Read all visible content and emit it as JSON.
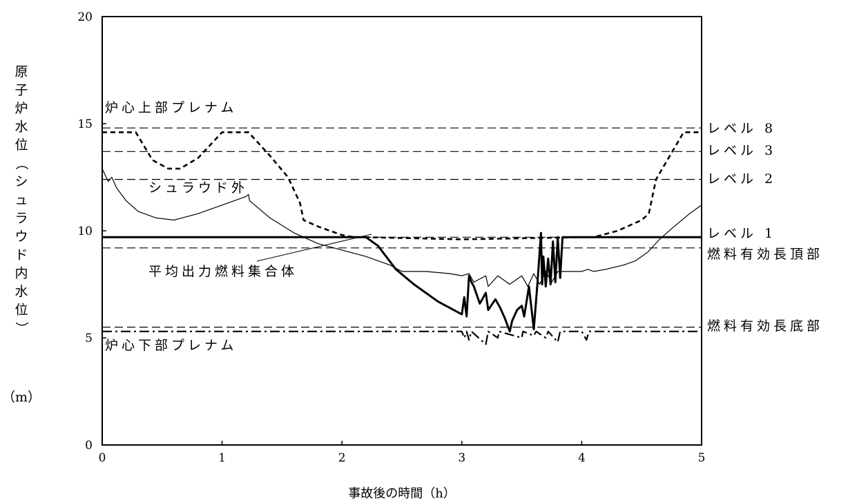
{
  "chart_data": {
    "type": "line",
    "xlabel": "事故後の時間（h）",
    "ylabel": "原子炉水位（シュラウド内水位）",
    "ylabel_unit": "（m）",
    "xlim": [
      0,
      5
    ],
    "ylim": [
      0,
      20
    ],
    "x_ticks": [
      "0",
      "1",
      "2",
      "3",
      "4",
      "5"
    ],
    "y_ticks": [
      "0",
      "5",
      "10",
      "15",
      "20"
    ],
    "grid": false,
    "annotations": {
      "upper_plenum": "炉心上部プレナム",
      "lower_plenum": "炉心下部プレナム",
      "outside_shroud": "シュラウド外",
      "avg_fuel": "平均出力燃料集合体",
      "level8": "レベル 8",
      "level3": "レベル 3",
      "level2": "レベル 2",
      "level1": "レベル 1",
      "taf": "燃料有効長頂部",
      "baf": "燃料有効長底部"
    },
    "reference_lines": [
      {
        "label_key": "level8",
        "y": 14.8
      },
      {
        "label_key": "level3",
        "y": 13.7
      },
      {
        "label_key": "level2",
        "y": 12.4
      },
      {
        "label_key": "level1",
        "y": 9.7
      },
      {
        "label_key": "taf",
        "y": 9.2
      },
      {
        "label_key": "baf",
        "y": 5.5
      }
    ],
    "series": [
      {
        "style": "dashed-bold",
        "x": [
          0,
          0.28,
          0.42,
          0.55,
          0.65,
          0.8,
          1.0,
          1.22,
          1.4,
          1.55,
          1.65,
          1.68,
          1.8,
          2.0,
          2.1,
          2.2,
          3.0,
          4.0,
          4.1,
          4.3,
          4.5,
          4.56,
          4.62,
          4.85,
          5.0
        ],
        "y": [
          14.6,
          14.6,
          13.3,
          12.9,
          12.9,
          13.4,
          14.6,
          14.6,
          13.5,
          12.5,
          11.3,
          10.5,
          10.2,
          9.8,
          9.7,
          9.7,
          9.6,
          9.7,
          9.7,
          10.0,
          10.5,
          10.8,
          12.4,
          14.6,
          14.6
        ]
      },
      {
        "style": "thin",
        "x": [
          0,
          0.05,
          0.08,
          0.12,
          0.2,
          0.3,
          0.45,
          0.6,
          0.8,
          1.0,
          1.2,
          1.22,
          1.23,
          1.4,
          1.6,
          1.8,
          2.0,
          2.2,
          2.4,
          2.5,
          2.7,
          2.9,
          3.0,
          3.06,
          3.1,
          3.2,
          3.22,
          3.3,
          3.4,
          3.5,
          3.55,
          3.6,
          3.65,
          3.7,
          3.75,
          3.8,
          3.9,
          4.0,
          4.05,
          4.1,
          4.2,
          4.35,
          4.45,
          4.55,
          4.65,
          4.75,
          4.9,
          5.0
        ],
        "y": [
          12.9,
          12.3,
          12.5,
          12.0,
          11.4,
          10.9,
          10.6,
          10.5,
          10.8,
          11.2,
          11.6,
          11.7,
          11.4,
          10.6,
          9.9,
          9.4,
          9.1,
          8.8,
          8.4,
          8.1,
          8.1,
          8.0,
          7.9,
          8.0,
          7.6,
          7.9,
          7.4,
          7.9,
          7.5,
          7.9,
          7.4,
          8.0,
          7.5,
          8.1,
          7.6,
          8.1,
          8.1,
          8.1,
          8.2,
          8.1,
          8.2,
          8.4,
          8.6,
          9.0,
          9.6,
          10.1,
          10.8,
          11.2
        ]
      },
      {
        "style": "bold",
        "x": [
          0,
          2.2,
          2.3,
          2.45,
          2.6,
          2.8,
          3.0,
          3.02,
          3.04,
          3.06,
          3.08,
          3.1,
          3.15,
          3.2,
          3.22,
          3.28,
          3.32,
          3.36,
          3.4,
          3.42,
          3.46,
          3.5,
          3.52,
          3.56,
          3.6,
          3.63,
          3.66,
          3.67,
          3.68,
          3.7,
          3.72,
          3.74,
          3.76,
          3.78,
          3.8,
          3.82,
          3.84,
          3.86,
          5.0
        ],
        "y": [
          9.7,
          9.7,
          9.3,
          8.2,
          7.5,
          6.7,
          6.1,
          6.9,
          6.0,
          7.9,
          7.6,
          7.4,
          6.6,
          7.1,
          6.3,
          6.8,
          6.4,
          5.9,
          5.3,
          5.8,
          6.3,
          6.5,
          6.0,
          7.4,
          5.4,
          7.5,
          9.9,
          7.5,
          8.8,
          7.4,
          8.7,
          7.5,
          9.5,
          7.6,
          9.7,
          7.8,
          9.7,
          9.7,
          9.7
        ]
      },
      {
        "style": "dashdot",
        "x": [
          0,
          1.0,
          2.0,
          3.0,
          3.02,
          3.04,
          3.06,
          3.08,
          3.2,
          3.22,
          3.3,
          3.31,
          3.5,
          3.51,
          3.6,
          3.62,
          3.7,
          3.72,
          3.8,
          3.82,
          3.84,
          4.0,
          4.04,
          4.06,
          5.0
        ],
        "y": [
          5.3,
          5.3,
          5.3,
          5.3,
          5.0,
          5.3,
          4.9,
          5.3,
          4.7,
          5.3,
          5.0,
          5.3,
          5.0,
          5.3,
          5.1,
          5.3,
          5.0,
          5.3,
          4.8,
          5.3,
          5.3,
          5.3,
          4.9,
          5.3,
          5.3
        ]
      }
    ]
  }
}
